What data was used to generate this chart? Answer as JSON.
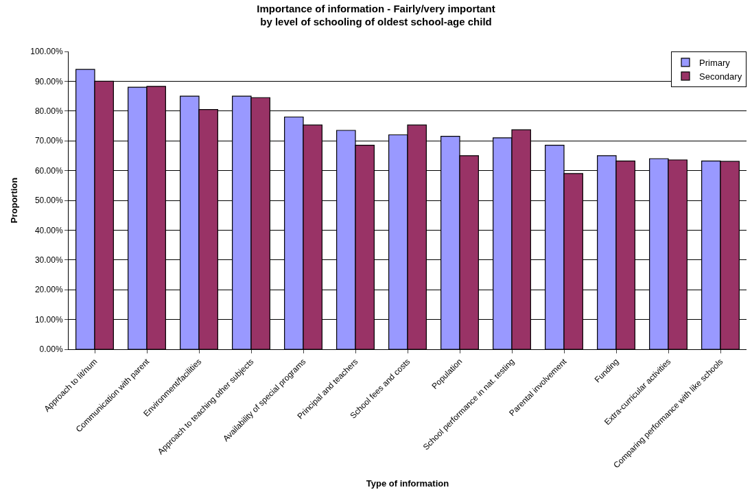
{
  "chart_data": {
    "type": "bar",
    "title": "Importance of information - Fairly/very important\nby level of schooling of oldest school-age child",
    "xlabel": "Type of information",
    "ylabel": "Proportion",
    "categories": [
      "Approach to lit/num",
      "Communication with parent",
      "Environment/facilities",
      "Approach to teaching other subjects",
      "Availability of special programs",
      "Principal and teachers",
      "School fees and costs",
      "Population",
      "School performance in nat. testing",
      "Parental involvement",
      "Funding",
      "Extra-curricular activities",
      "Comparing performance with like schools"
    ],
    "series": [
      {
        "name": "Primary",
        "color": "#9999ff",
        "values": [
          94,
          88,
          85,
          85,
          78,
          73.5,
          72,
          71.5,
          71,
          68.5,
          65,
          64,
          63.2
        ]
      },
      {
        "name": "Secondary",
        "color": "#993366",
        "values": [
          90,
          88.3,
          80.5,
          84.5,
          75.3,
          68.5,
          75.3,
          65,
          73.7,
          59,
          63.2,
          63.6,
          63.1
        ]
      }
    ],
    "ylim": [
      0,
      100
    ],
    "yticks": [
      {
        "value": 0,
        "label": "0.00%"
      },
      {
        "value": 10,
        "label": "10.00%"
      },
      {
        "value": 20,
        "label": "20.00%"
      },
      {
        "value": 30,
        "label": "30.00%"
      },
      {
        "value": 40,
        "label": "40.00%"
      },
      {
        "value": 50,
        "label": "50.00%"
      },
      {
        "value": 60,
        "label": "60.00%"
      },
      {
        "value": 70,
        "label": "70.00%"
      },
      {
        "value": 80,
        "label": "80.00%"
      },
      {
        "value": 90,
        "label": "90.00%"
      },
      {
        "value": 100,
        "label": "100.00%"
      }
    ],
    "grid": "y",
    "legend": "top right"
  }
}
